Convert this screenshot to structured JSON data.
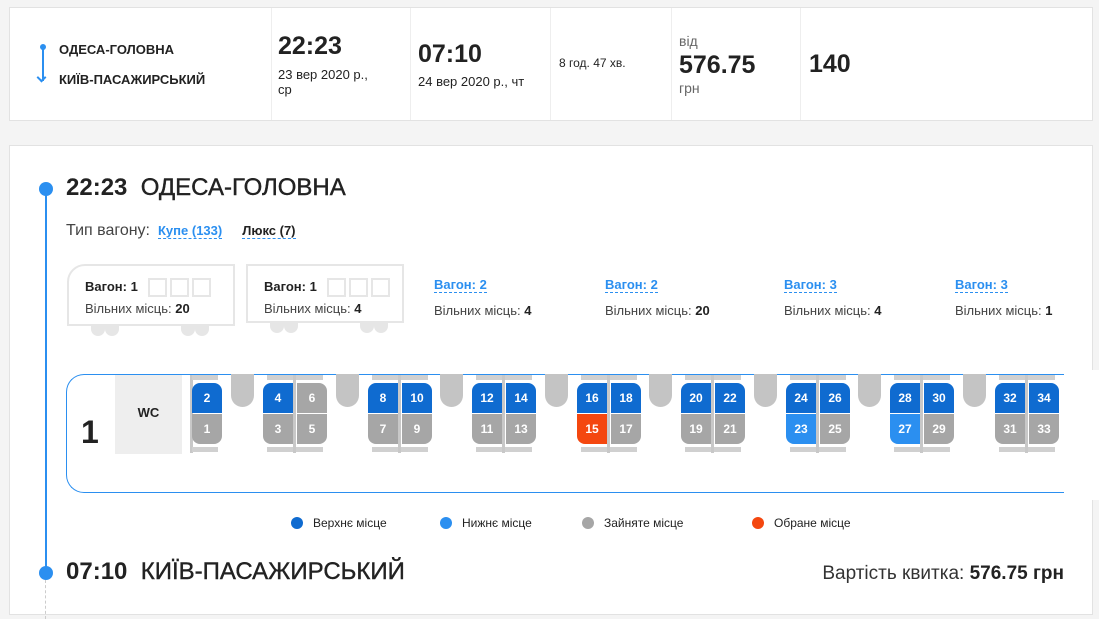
{
  "summary": {
    "from": "ОДЕСА-ГОЛОВНА",
    "to": "КИЇВ-ПАСАЖИРСЬКИЙ",
    "dep_time": "22:23",
    "dep_date": "23 вер 2020 р.,",
    "dep_day": "ср",
    "arr_time": "07:10",
    "arr_date": "24 вер 2020 р., чт",
    "duration": "8 год. 47 хв.",
    "price_prefix": "від",
    "price": "576.75",
    "currency": "грн",
    "seats": "140"
  },
  "departure": {
    "time": "22:23",
    "station": "ОДЕСА-ГОЛОВНА"
  },
  "wagon_type": {
    "label": "Тип вагону:",
    "options": [
      {
        "label": "Купе (133)",
        "active": true
      },
      {
        "label": "Люкс (7)",
        "active": false
      }
    ]
  },
  "wagons": [
    {
      "label": "Вагон: 1",
      "free_label": "Вільних місць:",
      "free": "20",
      "selected": true
    },
    {
      "label": "Вагон: 1",
      "free_label": "Вільних місць:",
      "free": "4",
      "selected": true
    },
    {
      "label": "Вагон: 2",
      "free_label": "Вільних місць:",
      "free": "4"
    },
    {
      "label": "Вагон: 2",
      "free_label": "Вільних місць:",
      "free": "20"
    },
    {
      "label": "Вагон: 3",
      "free_label": "Вільних місць:",
      "free": "4"
    },
    {
      "label": "Вагон: 3",
      "free_label": "Вільних місць:",
      "free": "1"
    }
  ],
  "car": {
    "number": "1",
    "wc": "WC",
    "first_seats": [
      {
        "n": "2",
        "s": "upper"
      },
      {
        "n": "1",
        "s": "taken"
      }
    ],
    "compartments": [
      [
        {
          "n": "4",
          "s": "upper"
        },
        {
          "n": "6",
          "s": "taken"
        },
        {
          "n": "3",
          "s": "taken"
        },
        {
          "n": "5",
          "s": "taken"
        }
      ],
      [
        {
          "n": "8",
          "s": "upper"
        },
        {
          "n": "10",
          "s": "upper"
        },
        {
          "n": "7",
          "s": "taken"
        },
        {
          "n": "9",
          "s": "taken"
        }
      ],
      [
        {
          "n": "12",
          "s": "upper"
        },
        {
          "n": "14",
          "s": "upper"
        },
        {
          "n": "11",
          "s": "taken"
        },
        {
          "n": "13",
          "s": "taken"
        }
      ],
      [
        {
          "n": "16",
          "s": "upper"
        },
        {
          "n": "18",
          "s": "upper"
        },
        {
          "n": "15",
          "s": "selected"
        },
        {
          "n": "17",
          "s": "taken"
        }
      ],
      [
        {
          "n": "20",
          "s": "upper"
        },
        {
          "n": "22",
          "s": "upper"
        },
        {
          "n": "19",
          "s": "taken"
        },
        {
          "n": "21",
          "s": "taken"
        }
      ],
      [
        {
          "n": "24",
          "s": "upper"
        },
        {
          "n": "26",
          "s": "upper"
        },
        {
          "n": "23",
          "s": "lower"
        },
        {
          "n": "25",
          "s": "taken"
        }
      ],
      [
        {
          "n": "28",
          "s": "upper"
        },
        {
          "n": "30",
          "s": "upper"
        },
        {
          "n": "27",
          "s": "lower"
        },
        {
          "n": "29",
          "s": "taken"
        }
      ],
      [
        {
          "n": "32",
          "s": "upper"
        },
        {
          "n": "34",
          "s": "upper"
        },
        {
          "n": "31",
          "s": "taken"
        },
        {
          "n": "33",
          "s": "taken"
        }
      ]
    ]
  },
  "colors": {
    "upper": "#0f6bd0",
    "lower": "#2b8ff0",
    "taken": "#a6a6a6",
    "selected": "#f4470f",
    "accent": "#2b8ff0"
  },
  "legend": [
    {
      "label": "Верхнє місце",
      "s": "upper"
    },
    {
      "label": "Нижнє місце",
      "s": "lower"
    },
    {
      "label": "Зайняте місце",
      "s": "taken"
    },
    {
      "label": "Обране місце",
      "s": "selected"
    }
  ],
  "arrival": {
    "time": "07:10",
    "station": "КИЇВ-ПАСАЖИРСЬКИЙ"
  },
  "ticket": {
    "label": "Вартість квитка:",
    "price": "576.75 грн"
  }
}
